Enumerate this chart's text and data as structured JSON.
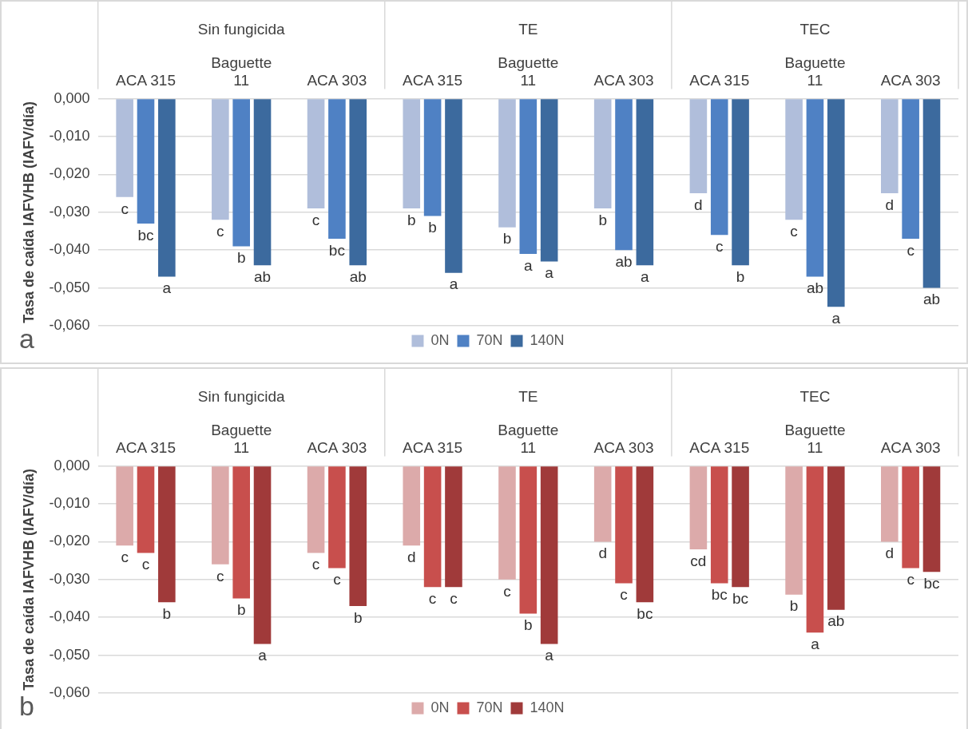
{
  "chart_data": [
    {
      "type": "bar",
      "title": "a",
      "ylabel": "Tasa de caída IAFVHB (IAFV/día)",
      "categories": [
        "ACA 315",
        "Baguette 11",
        "ACA 303",
        "ACA 315",
        "Baguette 11",
        "ACA 303",
        "ACA 315",
        "Baguette 11",
        "ACA 303"
      ],
      "annotations": [
        "Sin fungicida",
        "TE",
        "TEC"
      ],
      "series": [
        {
          "name": "0N",
          "color": "#b0bedb",
          "values": [
            -0.026,
            -0.032,
            -0.029,
            -0.029,
            -0.034,
            -0.029,
            -0.025,
            -0.032,
            -0.025
          ],
          "value_labels": [
            "c",
            "c",
            "c",
            "b",
            "b",
            "b",
            "d",
            "c",
            "d"
          ]
        },
        {
          "name": "70N",
          "color": "#4f81c4",
          "values": [
            -0.033,
            -0.039,
            -0.037,
            -0.031,
            -0.041,
            -0.04,
            -0.036,
            -0.047,
            -0.037
          ],
          "value_labels": [
            "bc",
            "b",
            "bc",
            "b",
            "a",
            "ab",
            "c",
            "ab",
            "c"
          ]
        },
        {
          "name": "140N",
          "color": "#3c6a9e",
          "values": [
            -0.047,
            -0.044,
            -0.044,
            -0.046,
            -0.043,
            -0.044,
            -0.044,
            -0.055,
            -0.05
          ],
          "value_labels": [
            "a",
            "ab",
            "ab",
            "a",
            "a",
            "a",
            "b",
            "a",
            "ab"
          ]
        }
      ],
      "ylim": [
        -0.06,
        0
      ],
      "yticks": [
        {
          "value": 0,
          "label": "0,000"
        },
        {
          "value": -0.01,
          "label": "-0,010"
        },
        {
          "value": -0.02,
          "label": "-0,020"
        },
        {
          "value": -0.03,
          "label": "-0,030"
        },
        {
          "value": -0.04,
          "label": "-0,040"
        },
        {
          "value": -0.05,
          "label": "-0,050"
        },
        {
          "value": -0.06,
          "label": "-0,060"
        }
      ],
      "grid": "y",
      "legend": "bottom"
    },
    {
      "type": "bar",
      "title": "b",
      "ylabel": "Tasa de caída IAFVHB (IAFV/día)",
      "categories": [
        "ACA 315",
        "Baguette 11",
        "ACA 303",
        "ACA 315",
        "Baguette 11",
        "ACA 303",
        "ACA 315",
        "Baguette 11",
        "ACA 303"
      ],
      "annotations": [
        "Sin fungicida",
        "TE",
        "TEC"
      ],
      "series": [
        {
          "name": "0N",
          "color": "#dcaaaa",
          "values": [
            -0.021,
            -0.026,
            -0.023,
            -0.021,
            -0.03,
            -0.02,
            -0.022,
            -0.034,
            -0.02
          ],
          "value_labels": [
            "c",
            "c",
            "c",
            "d",
            "c",
            "d",
            "cd",
            "b",
            "d"
          ]
        },
        {
          "name": "70N",
          "color": "#c84f4d",
          "values": [
            -0.023,
            -0.035,
            -0.027,
            -0.032,
            -0.039,
            -0.031,
            -0.031,
            -0.044,
            -0.027
          ],
          "value_labels": [
            "c",
            "b",
            "c",
            "c",
            "b",
            "c",
            "bc",
            "a",
            "c"
          ]
        },
        {
          "name": "140N",
          "color": "#a03a3a",
          "values": [
            -0.036,
            -0.047,
            -0.037,
            -0.032,
            -0.047,
            -0.036,
            -0.032,
            -0.038,
            -0.028
          ],
          "value_labels": [
            "b",
            "a",
            "b",
            "c",
            "a",
            "bc",
            "bc",
            "ab",
            "bc"
          ]
        }
      ],
      "ylim": [
        -0.06,
        0
      ],
      "yticks": [
        {
          "value": 0,
          "label": "0,000"
        },
        {
          "value": -0.01,
          "label": "-0,010"
        },
        {
          "value": -0.02,
          "label": "-0,020"
        },
        {
          "value": -0.03,
          "label": "-0,030"
        },
        {
          "value": -0.04,
          "label": "-0,040"
        },
        {
          "value": -0.05,
          "label": "-0,050"
        },
        {
          "value": -0.06,
          "label": "-0,060"
        }
      ],
      "grid": "y",
      "legend": "bottom"
    }
  ]
}
